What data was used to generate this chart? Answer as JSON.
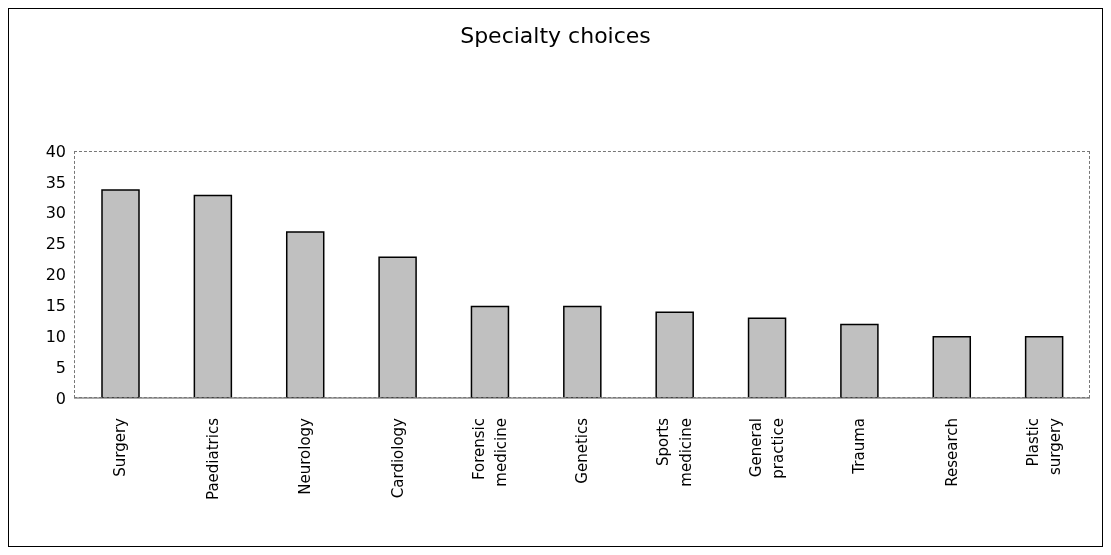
{
  "chart_data": {
    "type": "bar",
    "title": "Specialty choices",
    "categories": [
      "Surgery",
      "Paediatrics",
      "Neurology",
      "Cardiology",
      "Forensic medicine",
      "Genetics",
      "Sports medicine",
      "General practice",
      "Trauma",
      "Research",
      "Plastic surgery"
    ],
    "values": [
      33.7,
      32.8,
      26.9,
      22.8,
      14.8,
      14.8,
      13.9,
      12.9,
      11.9,
      9.9,
      9.9
    ],
    "color": "#c0c0c0",
    "ylim": [
      0,
      40
    ],
    "yticks": [
      0,
      5,
      10,
      15,
      20,
      25,
      30,
      35,
      40
    ],
    "grid": false,
    "legend": false
  }
}
